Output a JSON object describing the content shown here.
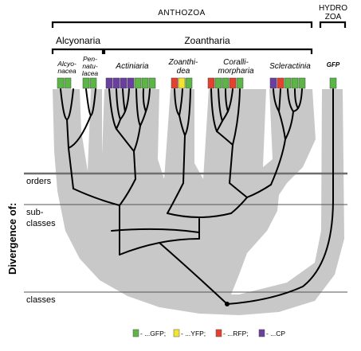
{
  "groups": {
    "anthozoa": "ANTHOZOA",
    "hydrozoa_line1": "HYDRO",
    "hydrozoa_line2": "ZOA",
    "alcyonaria": "Alcyonaria",
    "zoantharia": "Zoantharia"
  },
  "orders": {
    "alcyonacea_1": "Alcyo-",
    "alcyonacea_2": "nacea",
    "pennatulacea_1": "Pen-",
    "pennatulacea_2": "natu-",
    "pennatulacea_3": "lacea",
    "actiniaria": "Actiniaria",
    "zoanthidea_1": "Zoanthi-",
    "zoanthidea_2": "dea",
    "corallimorpharia_1": "Coralli-",
    "corallimorpharia_2": "morpharia",
    "scleractinia": "Scleractinia",
    "gfp": "GFP"
  },
  "axis": {
    "title": "Divergence of:",
    "orders": "orders",
    "subclasses_1": "sub-",
    "subclasses_2": "classes",
    "classes": "classes"
  },
  "legend": {
    "gfp": "- ...GFP;",
    "yfp": "- ...YFP;",
    "rfp": "- ...RFP;",
    "cp": "- ...CP"
  },
  "colors": {
    "gfp": "#5cb646",
    "yfp": "#f1e432",
    "rfp": "#e4422e",
    "cp": "#6a3fa0",
    "background_shape": "#c8c8c8"
  },
  "tips": [
    {
      "order": "Alcyonacea",
      "colors": [
        "gfp",
        "gfp"
      ]
    },
    {
      "order": "Pennatulacea",
      "colors": [
        "gfp",
        "gfp"
      ]
    },
    {
      "order": "Actiniaria",
      "colors": [
        "cp",
        "cp",
        "cp",
        "cp",
        "gfp",
        "gfp",
        "gfp"
      ]
    },
    {
      "order": "Zoanthidea",
      "colors": [
        "rfp",
        "yfp",
        "gfp"
      ]
    },
    {
      "order": "Corallimorpharia",
      "colors": [
        "rfp",
        "gfp",
        "gfp",
        "rfp",
        "gfp"
      ]
    },
    {
      "order": "Scleractinia",
      "colors": [
        "cp",
        "rfp",
        "gfp",
        "gfp",
        "gfp"
      ]
    },
    {
      "order": "Hydrozoa",
      "colors": [
        "gfp"
      ]
    }
  ]
}
